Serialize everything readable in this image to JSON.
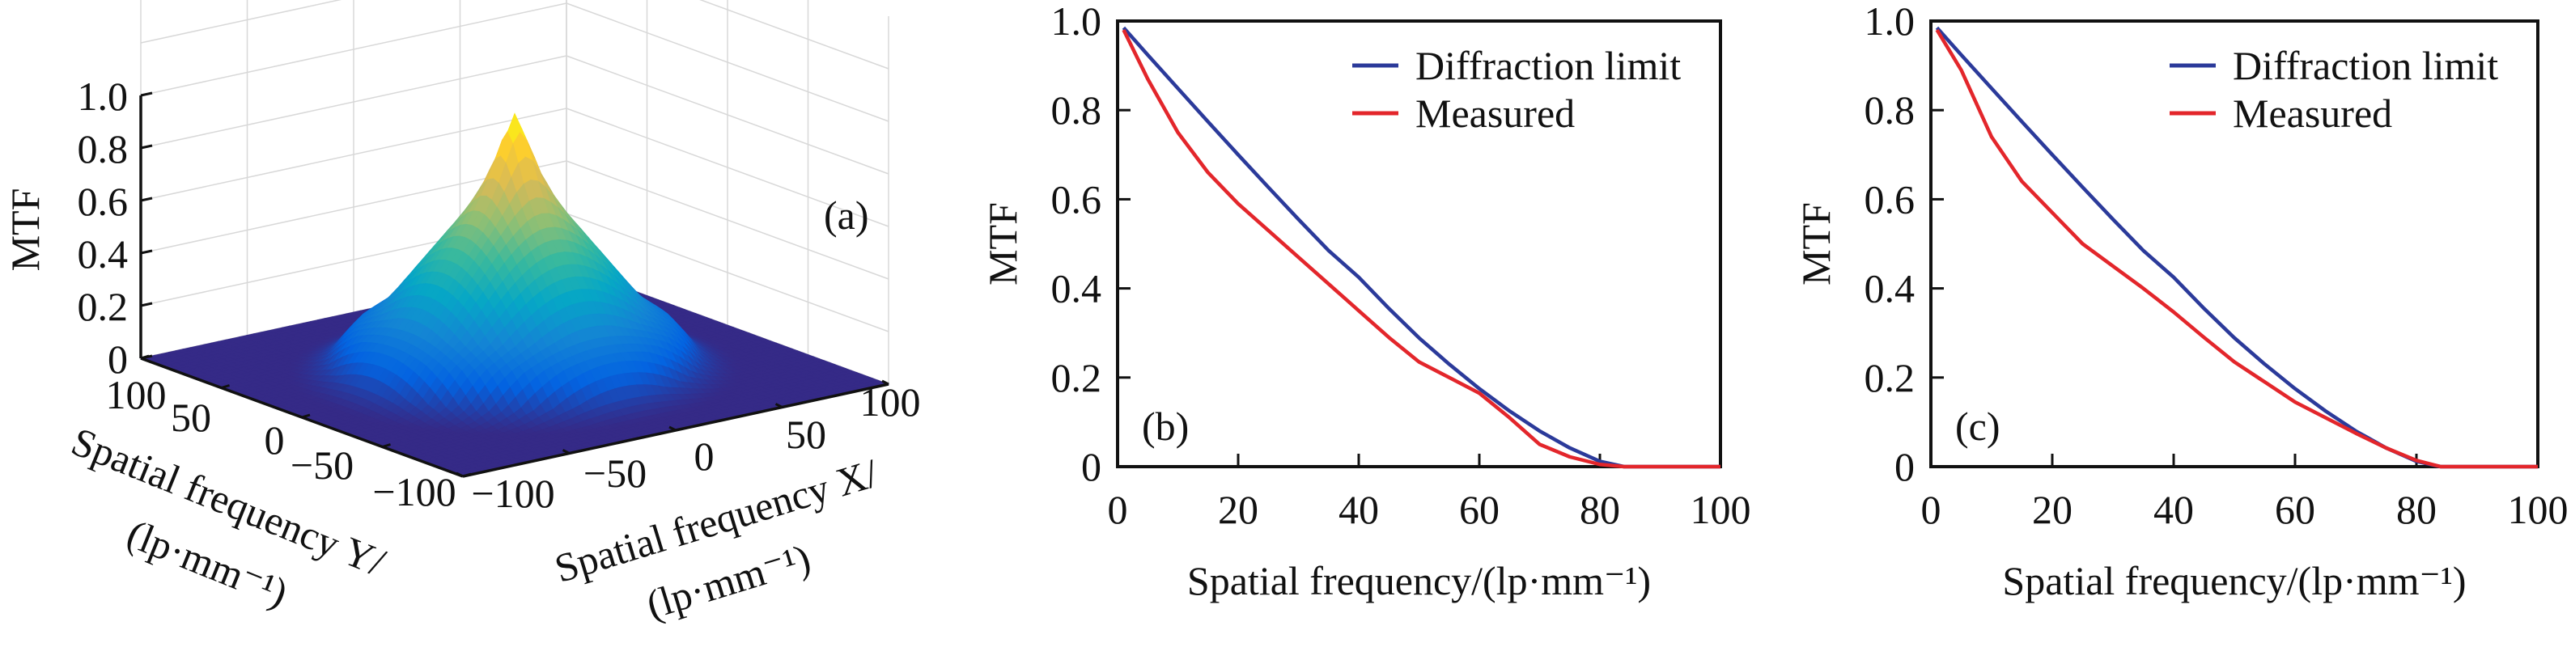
{
  "colors": {
    "diffraction": "#2b3a9a",
    "measured": "#e3262b",
    "floor": "#352a87"
  },
  "chart_data": [
    {
      "type": "surface",
      "panel_label": "(a)",
      "zlabel": "MTF",
      "xlabel": "Spatial frequency X/",
      "xlabel_unit": "(lp·mm⁻¹)",
      "ylabel": "Spatial frequency Y/",
      "ylabel_unit": "(lp·mm⁻¹)",
      "xlim": [
        -100,
        100
      ],
      "ylim": [
        -100,
        100
      ],
      "zlim": [
        0,
        1
      ],
      "xticks": [
        "−100",
        "−50",
        "0",
        "50",
        "100"
      ],
      "yticks": [
        "100",
        "50",
        "0",
        "−50",
        "−100"
      ],
      "zticks": [
        "1.0",
        "0.8",
        "0.6",
        "0.4",
        "0.2",
        "0"
      ],
      "colormap": "parula",
      "grid": true,
      "peak": 0.98
    },
    {
      "type": "line",
      "panel_label": "(b)",
      "xlabel": "Spatial frequency/(lp·mm⁻¹)",
      "ylabel": "MTF",
      "xlim": [
        0,
        100
      ],
      "ylim": [
        0,
        1
      ],
      "xticks": [
        "0",
        "20",
        "40",
        "60",
        "80",
        "100"
      ],
      "yticks": [
        "0",
        "0.2",
        "0.4",
        "0.6",
        "0.8",
        "1.0"
      ],
      "legend": "top-right",
      "grid": false,
      "x": [
        1,
        5,
        10,
        15,
        20,
        25,
        30,
        35,
        40,
        45,
        50,
        55,
        60,
        65,
        70,
        75,
        80,
        84,
        90,
        100
      ],
      "series": [
        {
          "name": "Diffraction limit",
          "color": "#2b3a9a",
          "values": [
            0.985,
            0.924,
            0.849,
            0.774,
            0.7,
            0.627,
            0.555,
            0.485,
            0.425,
            0.355,
            0.289,
            0.23,
            0.175,
            0.125,
            0.08,
            0.042,
            0.012,
            0,
            0,
            0
          ]
        },
        {
          "name": "Measured",
          "color": "#e3262b",
          "values": [
            0.98,
            0.87,
            0.75,
            0.66,
            0.59,
            0.53,
            0.47,
            0.41,
            0.35,
            0.29,
            0.235,
            0.2,
            0.165,
            0.11,
            0.05,
            0.022,
            0.005,
            0,
            0,
            0
          ]
        }
      ]
    },
    {
      "type": "line",
      "panel_label": "(c)",
      "xlabel": "Spatial frequency/(lp·mm⁻¹)",
      "ylabel": "MTF",
      "xlim": [
        0,
        100
      ],
      "ylim": [
        0,
        1
      ],
      "xticks": [
        "0",
        "20",
        "40",
        "60",
        "80",
        "100"
      ],
      "yticks": [
        "0",
        "0.2",
        "0.4",
        "0.6",
        "0.8",
        "1.0"
      ],
      "legend": "top-right",
      "grid": false,
      "x": [
        1,
        5,
        10,
        15,
        20,
        25,
        30,
        35,
        40,
        45,
        50,
        55,
        60,
        65,
        70,
        75,
        80,
        84,
        90,
        100
      ],
      "series": [
        {
          "name": "Diffraction limit",
          "color": "#2b3a9a",
          "values": [
            0.985,
            0.924,
            0.849,
            0.774,
            0.7,
            0.627,
            0.555,
            0.485,
            0.425,
            0.355,
            0.289,
            0.23,
            0.175,
            0.125,
            0.08,
            0.042,
            0.012,
            0,
            0,
            0
          ]
        },
        {
          "name": "Measured",
          "color": "#e3262b",
          "values": [
            0.98,
            0.89,
            0.74,
            0.64,
            0.57,
            0.5,
            0.45,
            0.4,
            0.347,
            0.29,
            0.235,
            0.19,
            0.145,
            0.11,
            0.075,
            0.042,
            0.014,
            0,
            0,
            0
          ]
        }
      ]
    }
  ]
}
